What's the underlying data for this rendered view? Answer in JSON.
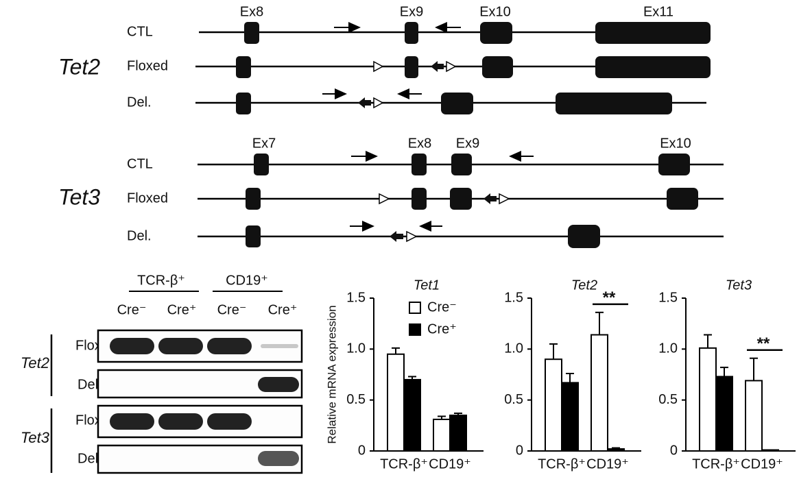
{
  "tet2_map": {
    "gene": "Tet2",
    "rows": [
      "CTL",
      "Floxed",
      "Del."
    ],
    "exons": [
      "Ex8",
      "Ex9",
      "Ex10",
      "Ex11"
    ]
  },
  "tet3_map": {
    "gene": "Tet3",
    "rows": [
      "CTL",
      "Floxed",
      "Del."
    ],
    "exons": [
      "Ex7",
      "Ex8",
      "Ex9",
      "Ex10"
    ]
  },
  "gel": {
    "groups": [
      "TCR-β⁺",
      "CD19⁺"
    ],
    "lanes": [
      "Cre⁻",
      "Cre⁺",
      "Cre⁻",
      "Cre⁺"
    ],
    "genes": [
      {
        "name": "Tet2",
        "rows": [
          "Flox",
          "Del."
        ]
      },
      {
        "name": "Tet3",
        "rows": [
          "Flox",
          "Del."
        ]
      }
    ]
  },
  "chart_data": [
    {
      "type": "bar",
      "title": "Tet1",
      "ylabel": "Relative mRNA expression",
      "categories": [
        "TCR-β⁺",
        "CD19⁺"
      ],
      "series": [
        {
          "name": "Cre⁻",
          "color": "#ffffff",
          "values": [
            0.95,
            0.31
          ],
          "errors": [
            0.06,
            0.03
          ]
        },
        {
          "name": "Cre⁺",
          "color": "#000000",
          "values": [
            0.7,
            0.35
          ],
          "errors": [
            0.03,
            0.02
          ]
        }
      ],
      "ylim": [
        0,
        1.5
      ],
      "yticks": [
        0,
        0.5,
        {
          "value": 1,
          "label": "1.0"
        },
        1.5
      ],
      "legend": "upper center"
    },
    {
      "type": "bar",
      "title": "Tet2",
      "categories": [
        "TCR-β⁺",
        "CD19⁺"
      ],
      "series": [
        {
          "color": "#ffffff",
          "values": [
            0.9,
            1.14
          ],
          "errors": [
            0.15,
            0.22
          ]
        },
        {
          "color": "#000000",
          "values": [
            0.67,
            0.02
          ],
          "errors": [
            0.09,
            0.01
          ]
        }
      ],
      "ylim": [
        0,
        1.5
      ],
      "yticks": [
        0,
        0.5,
        {
          "value": 1,
          "label": "1.0"
        },
        1.5
      ],
      "annotations": [
        {
          "text": "**",
          "category": 1
        }
      ]
    },
    {
      "type": "bar",
      "title": "Tet3",
      "categories": [
        "TCR-β⁺",
        "CD19⁺"
      ],
      "series": [
        {
          "color": "#ffffff",
          "values": [
            1.01,
            0.69
          ],
          "errors": [
            0.13,
            0.22
          ]
        },
        {
          "color": "#000000",
          "values": [
            0.73,
            0.01
          ],
          "errors": [
            0.09,
            0
          ]
        }
      ],
      "ylim": [
        0,
        1.5
      ],
      "yticks": [
        0,
        0.5,
        {
          "value": 1,
          "label": "1.0"
        },
        1.5
      ],
      "annotations": [
        {
          "text": "**",
          "category": 1
        }
      ]
    }
  ]
}
